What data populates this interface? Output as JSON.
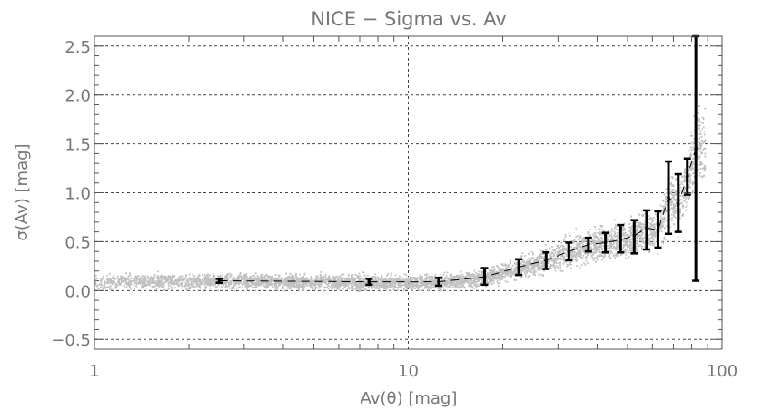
{
  "chart_data": {
    "type": "scatter",
    "title": "NICE − Sigma vs. Av",
    "xlabel": "Av(θ) [mag]",
    "ylabel": "σ(Av) [mag]",
    "x_scale": "log",
    "xlim": [
      1,
      100
    ],
    "ylim": [
      -0.6,
      2.6
    ],
    "x_ticks": [
      1,
      10,
      100
    ],
    "x_tick_labels": [
      "1",
      "10",
      "100"
    ],
    "y_ticks": [
      -0.5,
      0.0,
      0.5,
      1.0,
      1.5,
      2.0,
      2.5
    ],
    "y_tick_labels": [
      "−0.5",
      "0.0",
      "0.5",
      "1.0",
      "1.5",
      "2.0",
      "2.5"
    ],
    "grid": true,
    "colors": {
      "scatter": "#c0c0c0",
      "errorbar": "#000000",
      "grid": "#444444",
      "text": "#777777"
    },
    "series": [
      {
        "kind": "binned_mean_with_errorbars",
        "x": [
          2.5,
          7.5,
          12.5,
          17.5,
          22.5,
          27.5,
          32.5,
          37.5,
          42.5,
          47.5,
          52.5,
          57.5,
          62.5,
          67.5,
          72.5,
          77.5,
          82.5
        ],
        "y": [
          0.1,
          0.09,
          0.09,
          0.14,
          0.24,
          0.31,
          0.4,
          0.47,
          0.49,
          0.52,
          0.56,
          0.64,
          0.62,
          0.95,
          0.88,
          1.17,
          1.45
        ],
        "ylow": [
          0.08,
          0.06,
          0.05,
          0.06,
          0.16,
          0.22,
          0.31,
          0.4,
          0.39,
          0.39,
          0.38,
          0.42,
          0.44,
          0.58,
          0.6,
          0.98,
          0.1
        ],
        "yhigh": [
          0.12,
          0.12,
          0.13,
          0.23,
          0.32,
          0.39,
          0.49,
          0.54,
          0.59,
          0.67,
          0.72,
          0.82,
          0.81,
          1.32,
          1.19,
          1.35,
          2.6
        ]
      }
    ]
  }
}
